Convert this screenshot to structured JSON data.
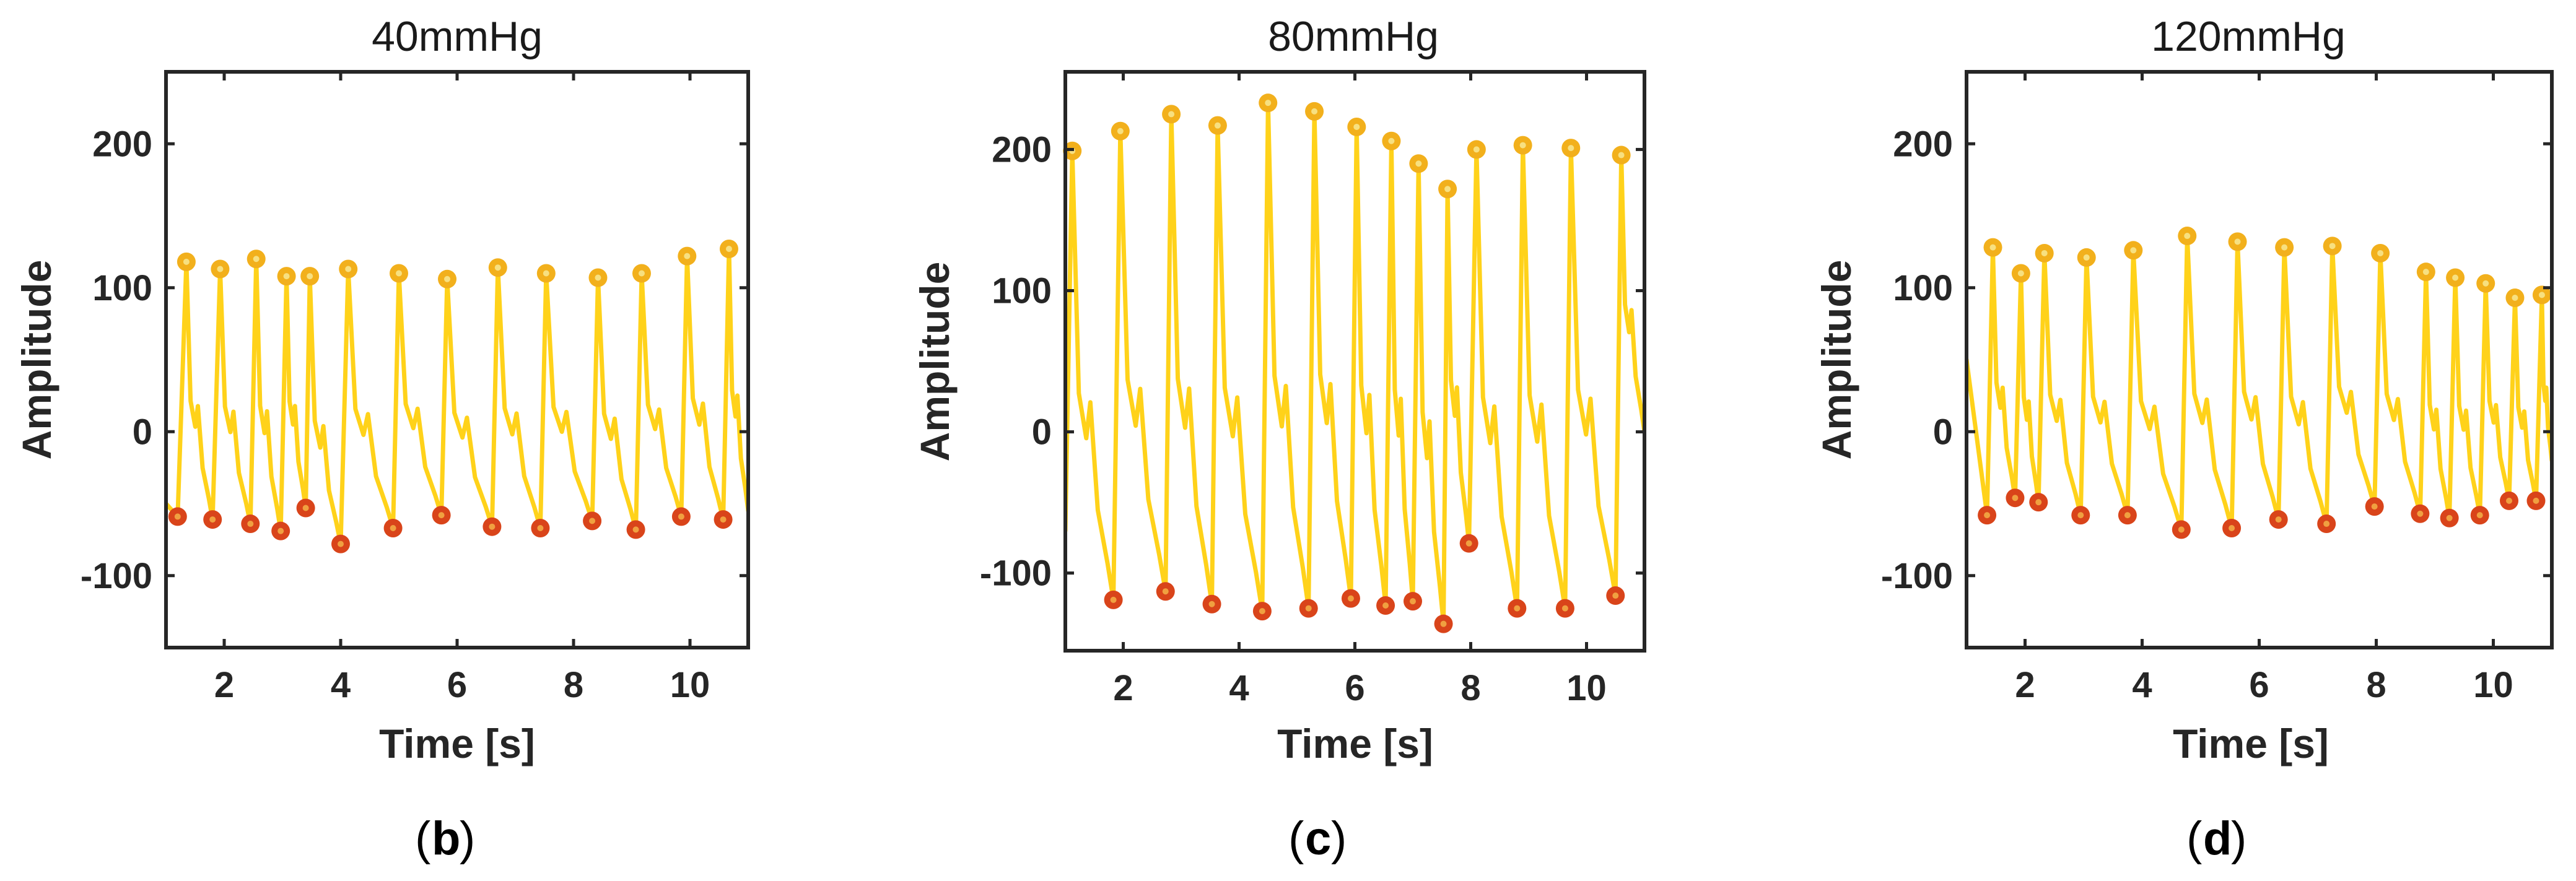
{
  "colors": {
    "signal": "#FFD21A",
    "peak_marker": "#F2B01C",
    "peak_center": "#F7E080",
    "trough_marker": "#D9441A",
    "trough_center": "#F0A040",
    "axis": "#262626"
  },
  "chart_data": [
    {
      "type": "line",
      "title": "40mmHg",
      "caption_letter": "b",
      "xlabel": "Time [s]",
      "ylabel": "Amplitude",
      "xlim": [
        1,
        11
      ],
      "ylim": [
        -150,
        250
      ],
      "xticks": [
        2,
        4,
        6,
        8,
        10
      ],
      "yticks": [
        -100,
        0,
        100,
        200
      ],
      "xtick_labels": [
        "2",
        "4",
        "6",
        "8",
        "10"
      ],
      "ytick_labels": [
        "-100",
        "0",
        "100",
        "200"
      ],
      "start": [
        1.0,
        -50
      ],
      "end": [
        11.0,
        -55
      ],
      "peaks": {
        "x": [
          1.35,
          1.93,
          2.55,
          3.07,
          3.47,
          4.13,
          5.0,
          5.83,
          6.7,
          7.53,
          8.42,
          9.17,
          9.95,
          10.67
        ],
        "y": [
          118,
          113,
          120,
          108,
          108,
          113,
          110,
          106,
          114,
          110,
          107,
          110,
          122,
          127
        ]
      },
      "troughs": {
        "x": [
          1.2,
          1.8,
          2.45,
          2.97,
          3.4,
          4.0,
          4.9,
          5.73,
          6.6,
          7.43,
          8.32,
          9.07,
          9.85,
          10.57
        ],
        "y": [
          -59,
          -61,
          -64,
          -69,
          -53,
          -78,
          -67,
          -58,
          -66,
          -67,
          -62,
          -68,
          -59,
          -61
        ]
      }
    },
    {
      "type": "line",
      "title": "80mmHg",
      "caption_letter": "c",
      "xlabel": "Time [s]",
      "ylabel": "Amplitude",
      "xlim": [
        1,
        11
      ],
      "ylim": [
        -155,
        255
      ],
      "xticks": [
        2,
        4,
        6,
        8,
        10
      ],
      "yticks": [
        -100,
        0,
        100,
        200
      ],
      "xtick_labels": [
        "2",
        "4",
        "6",
        "8",
        "10"
      ],
      "ytick_labels": [
        "-100",
        "0",
        "100",
        "200"
      ],
      "start": [
        1.0,
        -70
      ],
      "end": [
        11.0,
        0
      ],
      "peaks": {
        "x": [
          1.12,
          1.95,
          2.83,
          3.63,
          4.5,
          5.3,
          6.03,
          6.63,
          7.1,
          7.6,
          8.1,
          8.9,
          9.73,
          10.6
        ],
        "y": [
          199,
          213,
          225,
          217,
          233,
          227,
          216,
          206,
          190,
          172,
          200,
          203,
          201,
          196
        ]
      },
      "troughs": {
        "x": [
          1.83,
          2.73,
          3.53,
          4.4,
          5.2,
          5.93,
          6.53,
          7.0,
          7.53,
          7.97,
          8.8,
          9.63,
          10.5
        ],
        "y": [
          -119,
          -113,
          -122,
          -127,
          -125,
          -118,
          -123,
          -120,
          -136,
          -79,
          -125,
          -125,
          -116
        ]
      }
    },
    {
      "type": "line",
      "title": "120mmHg",
      "caption_letter": "d",
      "xlabel": "Time [s]",
      "ylabel": "Amplitude",
      "xlim": [
        1,
        11
      ],
      "ylim": [
        -150,
        250
      ],
      "xticks": [
        2,
        4,
        6,
        8,
        10
      ],
      "yticks": [
        -100,
        0,
        100,
        200
      ],
      "xtick_labels": [
        "2",
        "4",
        "6",
        "8",
        "10"
      ],
      "ytick_labels": [
        "-100",
        "0",
        "100",
        "200"
      ],
      "start": [
        1.0,
        50
      ],
      "end": [
        11.0,
        -20
      ],
      "peaks": {
        "x": [
          1.45,
          1.93,
          2.33,
          3.05,
          3.85,
          4.77,
          5.63,
          6.43,
          7.25,
          8.07,
          8.85,
          9.35,
          9.87,
          10.37,
          10.83
        ],
        "y": [
          128,
          110,
          124,
          121,
          126,
          136,
          132,
          128,
          129,
          124,
          111,
          107,
          103,
          93,
          95
        ]
      },
      "troughs": {
        "x": [
          1.35,
          1.83,
          2.23,
          2.95,
          3.75,
          4.67,
          5.53,
          6.33,
          7.15,
          7.97,
          8.75,
          9.25,
          9.77,
          10.27,
          10.73
        ],
        "y": [
          -58,
          -46,
          -49,
          -58,
          -58,
          -68,
          -67,
          -61,
          -64,
          -52,
          -57,
          -60,
          -58,
          -48,
          -48
        ]
      }
    }
  ]
}
